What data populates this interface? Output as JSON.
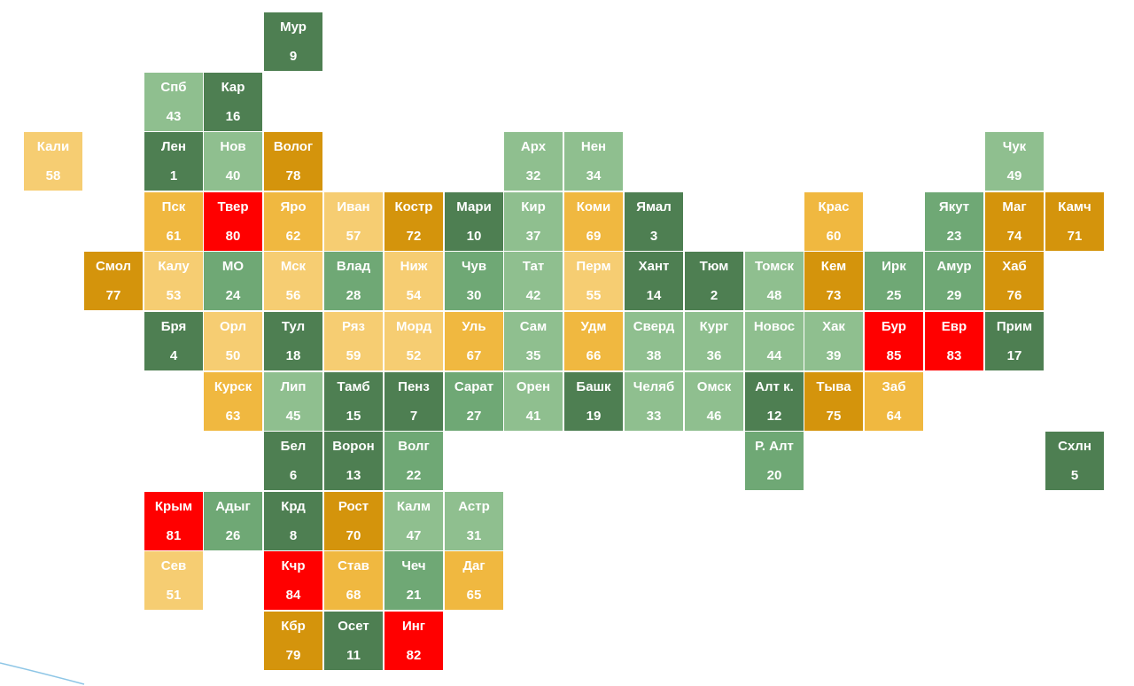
{
  "colors": {
    "dark_green": "#4e7f52",
    "mid_green": "#6fa875",
    "light_green": "#8fbf8f",
    "gold": "#d4940c",
    "orange": "#f0b840",
    "light_yellow": "#f6cd72",
    "red": "#ff0000"
  },
  "regions": [
    {
      "name": "Мур",
      "rank": "9",
      "color": "dark_green"
    },
    {
      "name": "Спб",
      "rank": "43",
      "color": "light_green"
    },
    {
      "name": "Кар",
      "rank": "16",
      "color": "dark_green"
    },
    {
      "name": "Кали",
      "rank": "58",
      "color": "light_yellow"
    },
    {
      "name": "Лен",
      "rank": "1",
      "color": "dark_green"
    },
    {
      "name": "Нов",
      "rank": "40",
      "color": "light_green"
    },
    {
      "name": "Волог",
      "rank": "78",
      "color": "gold"
    },
    {
      "name": "Арх",
      "rank": "32",
      "color": "light_green"
    },
    {
      "name": "Нен",
      "rank": "34",
      "color": "light_green"
    },
    {
      "name": "Чук",
      "rank": "49",
      "color": "light_green"
    },
    {
      "name": "Пск",
      "rank": "61",
      "color": "orange"
    },
    {
      "name": "Твер",
      "rank": "80",
      "color": "red"
    },
    {
      "name": "Яро",
      "rank": "62",
      "color": "orange"
    },
    {
      "name": "Иван",
      "rank": "57",
      "color": "light_yellow"
    },
    {
      "name": "Костр",
      "rank": "72",
      "color": "gold"
    },
    {
      "name": "Мари",
      "rank": "10",
      "color": "dark_green"
    },
    {
      "name": "Кир",
      "rank": "37",
      "color": "light_green"
    },
    {
      "name": "Коми",
      "rank": "69",
      "color": "orange"
    },
    {
      "name": "Ямал",
      "rank": "3",
      "color": "dark_green"
    },
    {
      "name": "Крас",
      "rank": "60",
      "color": "orange"
    },
    {
      "name": "Якут",
      "rank": "23",
      "color": "mid_green"
    },
    {
      "name": "Маг",
      "rank": "74",
      "color": "gold"
    },
    {
      "name": "Камч",
      "rank": "71",
      "color": "gold"
    },
    {
      "name": "Смол",
      "rank": "77",
      "color": "gold"
    },
    {
      "name": "Калу",
      "rank": "53",
      "color": "light_yellow"
    },
    {
      "name": "МО",
      "rank": "24",
      "color": "mid_green"
    },
    {
      "name": "Мск",
      "rank": "56",
      "color": "light_yellow"
    },
    {
      "name": "Влад",
      "rank": "28",
      "color": "mid_green"
    },
    {
      "name": "Ниж",
      "rank": "54",
      "color": "light_yellow"
    },
    {
      "name": "Чув",
      "rank": "30",
      "color": "mid_green"
    },
    {
      "name": "Тат",
      "rank": "42",
      "color": "light_green"
    },
    {
      "name": "Перм",
      "rank": "55",
      "color": "light_yellow"
    },
    {
      "name": "Хант",
      "rank": "14",
      "color": "dark_green"
    },
    {
      "name": "Тюм",
      "rank": "2",
      "color": "dark_green"
    },
    {
      "name": "Томск",
      "rank": "48",
      "color": "light_green"
    },
    {
      "name": "Кем",
      "rank": "73",
      "color": "gold"
    },
    {
      "name": "Ирк",
      "rank": "25",
      "color": "mid_green"
    },
    {
      "name": "Амур",
      "rank": "29",
      "color": "mid_green"
    },
    {
      "name": "Хаб",
      "rank": "76",
      "color": "gold"
    },
    {
      "name": "Бря",
      "rank": "4",
      "color": "dark_green"
    },
    {
      "name": "Орл",
      "rank": "50",
      "color": "light_yellow"
    },
    {
      "name": "Тул",
      "rank": "18",
      "color": "dark_green"
    },
    {
      "name": "Ряз",
      "rank": "59",
      "color": "light_yellow"
    },
    {
      "name": "Морд",
      "rank": "52",
      "color": "light_yellow"
    },
    {
      "name": "Уль",
      "rank": "67",
      "color": "orange"
    },
    {
      "name": "Сам",
      "rank": "35",
      "color": "light_green"
    },
    {
      "name": "Удм",
      "rank": "66",
      "color": "orange"
    },
    {
      "name": "Сверд",
      "rank": "38",
      "color": "light_green"
    },
    {
      "name": "Кург",
      "rank": "36",
      "color": "light_green"
    },
    {
      "name": "Новос",
      "rank": "44",
      "color": "light_green"
    },
    {
      "name": "Хак",
      "rank": "39",
      "color": "light_green"
    },
    {
      "name": "Бур",
      "rank": "85",
      "color": "red"
    },
    {
      "name": "Евр",
      "rank": "83",
      "color": "red"
    },
    {
      "name": "Прим",
      "rank": "17",
      "color": "dark_green"
    },
    {
      "name": "Курск",
      "rank": "63",
      "color": "orange"
    },
    {
      "name": "Лип",
      "rank": "45",
      "color": "light_green"
    },
    {
      "name": "Тамб",
      "rank": "15",
      "color": "dark_green"
    },
    {
      "name": "Пенз",
      "rank": "7",
      "color": "dark_green"
    },
    {
      "name": "Сарат",
      "rank": "27",
      "color": "mid_green"
    },
    {
      "name": "Орен",
      "rank": "41",
      "color": "light_green"
    },
    {
      "name": "Башк",
      "rank": "19",
      "color": "dark_green"
    },
    {
      "name": "Челяб",
      "rank": "33",
      "color": "light_green"
    },
    {
      "name": "Омск",
      "rank": "46",
      "color": "light_green"
    },
    {
      "name": "Алт к.",
      "rank": "12",
      "color": "dark_green"
    },
    {
      "name": "Тыва",
      "rank": "75",
      "color": "gold"
    },
    {
      "name": "Заб",
      "rank": "64",
      "color": "orange"
    },
    {
      "name": "Бел",
      "rank": "6",
      "color": "dark_green"
    },
    {
      "name": "Ворон",
      "rank": "13",
      "color": "dark_green"
    },
    {
      "name": "Волг",
      "rank": "22",
      "color": "mid_green"
    },
    {
      "name": "Р. Алт",
      "rank": "20",
      "color": "mid_green"
    },
    {
      "name": "Схлн",
      "rank": "5",
      "color": "dark_green"
    },
    {
      "name": "Крым",
      "rank": "81",
      "color": "red"
    },
    {
      "name": "Адыг",
      "rank": "26",
      "color": "mid_green"
    },
    {
      "name": "Крд",
      "rank": "8",
      "color": "dark_green"
    },
    {
      "name": "Рост",
      "rank": "70",
      "color": "gold"
    },
    {
      "name": "Калм",
      "rank": "47",
      "color": "light_green"
    },
    {
      "name": "Астр",
      "rank": "31",
      "color": "light_green"
    },
    {
      "name": "Сев",
      "rank": "51",
      "color": "light_yellow"
    },
    {
      "name": "Кчр",
      "rank": "84",
      "color": "red"
    },
    {
      "name": "Став",
      "rank": "68",
      "color": "orange"
    },
    {
      "name": "Чеч",
      "rank": "21",
      "color": "mid_green"
    },
    {
      "name": "Даг",
      "rank": "65",
      "color": "orange"
    },
    {
      "name": "Кбр",
      "rank": "79",
      "color": "gold"
    },
    {
      "name": "Осет",
      "rank": "11",
      "color": "dark_green"
    },
    {
      "name": "Инг",
      "rank": "82",
      "color": "red"
    }
  ]
}
